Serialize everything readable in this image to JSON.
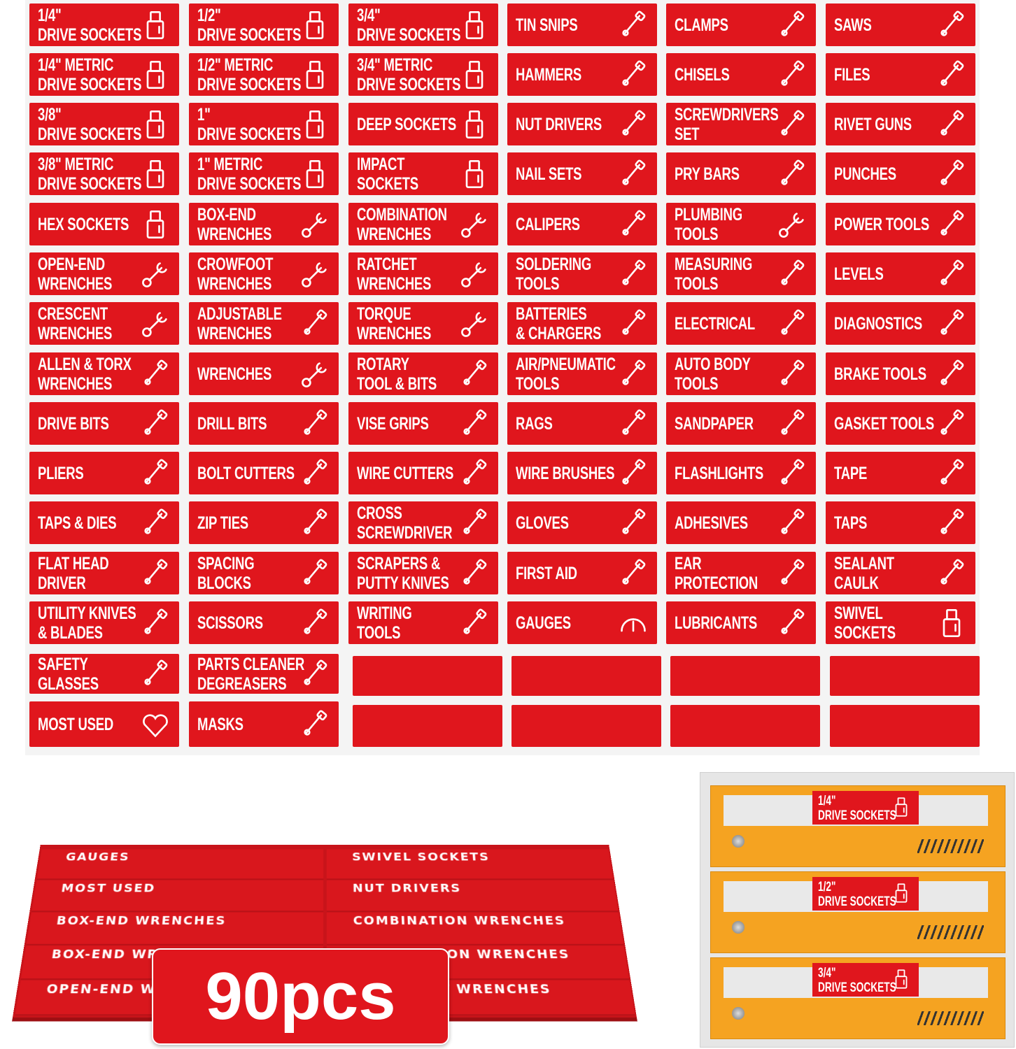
{
  "colors": {
    "label_red": "#e0161d",
    "drawer_orange": "#f5a321",
    "cabinet_gray": "#e6e6e6"
  },
  "sheet": {
    "labels": [
      [
        {
          "text": [
            "1/4\"",
            "DRIVE SOCKETS"
          ],
          "icon": "socket"
        },
        {
          "text": [
            "1/2\"",
            "DRIVE SOCKETS"
          ],
          "icon": "socket"
        },
        {
          "text": [
            "3/4\"",
            "DRIVE SOCKETS"
          ],
          "icon": "socket"
        },
        {
          "text": [
            "TIN SNIPS"
          ],
          "icon": "snips"
        },
        {
          "text": [
            "CLAMPS"
          ],
          "icon": "clamp"
        },
        {
          "text": [
            "SAWS"
          ],
          "icon": "saw"
        }
      ],
      [
        {
          "text": [
            "1/4\" METRIC",
            "DRIVE SOCKETS"
          ],
          "icon": "socket"
        },
        {
          "text": [
            "1/2\" METRIC",
            "DRIVE SOCKETS"
          ],
          "icon": "socket"
        },
        {
          "text": [
            "3/4\" METRIC",
            "DRIVE SOCKETS"
          ],
          "icon": "socket"
        },
        {
          "text": [
            "HAMMERS"
          ],
          "icon": "hammer"
        },
        {
          "text": [
            "CHISELS"
          ],
          "icon": "chisel"
        },
        {
          "text": [
            "FILES"
          ],
          "icon": "file"
        }
      ],
      [
        {
          "text": [
            "3/8\"",
            "DRIVE SOCKETS"
          ],
          "icon": "socket"
        },
        {
          "text": [
            "1\"",
            "DRIVE SOCKETS"
          ],
          "icon": "socket"
        },
        {
          "text": [
            "DEEP SOCKETS"
          ],
          "icon": "deep-socket"
        },
        {
          "text": [
            "NUT DRIVERS"
          ],
          "icon": "nut-driver"
        },
        {
          "text": [
            "SCREWDRIVERS",
            "SET"
          ],
          "icon": "screwdrivers"
        },
        {
          "text": [
            "RIVET GUNS"
          ],
          "icon": "rivet-gun"
        }
      ],
      [
        {
          "text": [
            "3/8\" METRIC",
            "DRIVE SOCKETS"
          ],
          "icon": "socket"
        },
        {
          "text": [
            "1\" METRIC",
            "DRIVE SOCKETS"
          ],
          "icon": "socket"
        },
        {
          "text": [
            "IMPACT",
            "SOCKETS"
          ],
          "icon": "socket"
        },
        {
          "text": [
            "NAIL SETS"
          ],
          "icon": "nail-set"
        },
        {
          "text": [
            "PRY BARS"
          ],
          "icon": "pry-bar"
        },
        {
          "text": [
            "PUNCHES"
          ],
          "icon": "punch"
        }
      ],
      [
        {
          "text": [
            "HEX SOCKETS"
          ],
          "icon": "hex-socket"
        },
        {
          "text": [
            "BOX-END",
            "WRENCHES"
          ],
          "icon": "wrench"
        },
        {
          "text": [
            "COMBINATION",
            "WRENCHES"
          ],
          "icon": "wrench"
        },
        {
          "text": [
            "CALIPERS"
          ],
          "icon": "caliper"
        },
        {
          "text": [
            "PLUMBING",
            "TOOLS"
          ],
          "icon": "pipe-wrench"
        },
        {
          "text": [
            "POWER TOOLS"
          ],
          "icon": "grinder"
        }
      ],
      [
        {
          "text": [
            "OPEN-END",
            "WRENCHES"
          ],
          "icon": "wrench"
        },
        {
          "text": [
            "CROWFOOT",
            "WRENCHES"
          ],
          "icon": "crowfoot"
        },
        {
          "text": [
            "RATCHET",
            "WRENCHES"
          ],
          "icon": "ratchet"
        },
        {
          "text": [
            "SOLDERING",
            "TOOLS"
          ],
          "icon": "soldering-iron"
        },
        {
          "text": [
            "MEASURING",
            "TOOLS"
          ],
          "icon": "tape-measure"
        },
        {
          "text": [
            "LEVELS"
          ],
          "icon": "level"
        }
      ],
      [
        {
          "text": [
            "CRESCENT",
            "WRENCHES"
          ],
          "icon": "adjustable-wrench"
        },
        {
          "text": [
            "ADJUSTABLE",
            "WRENCHES"
          ],
          "icon": "pliers"
        },
        {
          "text": [
            "TORQUE",
            "WRENCHES"
          ],
          "icon": "ratchet"
        },
        {
          "text": [
            "BATTERIES",
            "& CHARGERS"
          ],
          "icon": "battery"
        },
        {
          "text": [
            "ELECTRICAL"
          ],
          "icon": "multimeter"
        },
        {
          "text": [
            "DIAGNOSTICS"
          ],
          "icon": "diagnostic"
        }
      ],
      [
        {
          "text": [
            "ALLEN & TORX",
            "WRENCHES"
          ],
          "icon": "allen-keys"
        },
        {
          "text": [
            "WRENCHES"
          ],
          "icon": "wrenches"
        },
        {
          "text": [
            "ROTARY",
            "TOOL & BITS"
          ],
          "icon": "rotary-tool"
        },
        {
          "text": [
            "AIR/PNEUMATIC",
            "TOOLS"
          ],
          "icon": "air-gun"
        },
        {
          "text": [
            "AUTO BODY",
            "TOOLS"
          ],
          "icon": "car-door"
        },
        {
          "text": [
            "BRAKE TOOLS"
          ],
          "icon": "brake-disc"
        }
      ],
      [
        {
          "text": [
            "DRIVE BITS"
          ],
          "icon": "bits"
        },
        {
          "text": [
            "DRILL BITS"
          ],
          "icon": "drill-bits"
        },
        {
          "text": [
            "VISE GRIPS"
          ],
          "icon": "vise-grip"
        },
        {
          "text": [
            "RAGS"
          ],
          "icon": "rag"
        },
        {
          "text": [
            "SANDPAPER"
          ],
          "icon": "sandpaper"
        },
        {
          "text": [
            "GASKET TOOLS"
          ],
          "icon": "gasket"
        }
      ],
      [
        {
          "text": [
            "PLIERS"
          ],
          "icon": "pliers"
        },
        {
          "text": [
            "BOLT CUTTERS"
          ],
          "icon": "bolt-cutter"
        },
        {
          "text": [
            "WIRE CUTTERS"
          ],
          "icon": "wire-cutter"
        },
        {
          "text": [
            "WIRE BRUSHES"
          ],
          "icon": "brush"
        },
        {
          "text": [
            "FLASHLIGHTS"
          ],
          "icon": "flashlight"
        },
        {
          "text": [
            "TAPE"
          ],
          "icon": "tape"
        }
      ],
      [
        {
          "text": [
            "TAPS & DIES"
          ],
          "icon": "tap-die"
        },
        {
          "text": [
            "ZIP TIES"
          ],
          "icon": "zip-tie"
        },
        {
          "text": [
            "CROSS",
            "SCREWDRIVER"
          ],
          "icon": "screwdriver"
        },
        {
          "text": [
            "GLOVES"
          ],
          "icon": "gloves"
        },
        {
          "text": [
            "ADHESIVES"
          ],
          "icon": "glue"
        },
        {
          "text": [
            "TAPS"
          ],
          "icon": "taps"
        }
      ],
      [
        {
          "text": [
            "FLAT HEAD",
            "DRIVER"
          ],
          "icon": "screwdriver"
        },
        {
          "text": [
            "SPACING",
            "BLOCKS"
          ],
          "icon": "blocks"
        },
        {
          "text": [
            "SCRAPERS &",
            "PUTTY KNIVES"
          ],
          "icon": "scraper"
        },
        {
          "text": [
            "FIRST AID"
          ],
          "icon": "first-aid"
        },
        {
          "text": [
            "EAR",
            "PROTECTION"
          ],
          "icon": "headphones"
        },
        {
          "text": [
            "SEALANT",
            "CAULK"
          ],
          "icon": "caulk-gun"
        }
      ],
      [
        {
          "text": [
            "UTILITY KNIVES",
            "& BLADES"
          ],
          "icon": "utility-knife"
        },
        {
          "text": [
            "SCISSORS"
          ],
          "icon": "scissors"
        },
        {
          "text": [
            "WRITING",
            "TOOLS"
          ],
          "icon": "pencil"
        },
        {
          "text": [
            "GAUGES"
          ],
          "icon": "gauge"
        },
        {
          "text": [
            "LUBRICANTS"
          ],
          "icon": "oil-can"
        },
        {
          "text": [
            "SWIVEL",
            "SOCKETS"
          ],
          "icon": "swivel-socket"
        }
      ],
      [
        {
          "text": [
            "SAFETY",
            "GLASSES"
          ],
          "icon": "goggles"
        },
        {
          "text": [
            "PARTS CLEANER",
            "DEGREASERS"
          ],
          "icon": "spray"
        },
        null,
        null,
        null,
        null
      ],
      [
        {
          "text": [
            "MOST USED"
          ],
          "icon": "heart"
        },
        {
          "text": [
            "MASKS"
          ],
          "icon": "mask"
        },
        null,
        null,
        null,
        null
      ]
    ]
  },
  "stack": {
    "rows": [
      [
        "GAUGES",
        "SWIVEL SOCKETS"
      ],
      [
        "MOST USED",
        "NUT DRIVERS"
      ],
      [
        "BOX-END WRENCHES",
        "COMBINATION WRENCHES"
      ],
      [
        "BOX-END WRENCHES",
        "COMBINATION WRENCHES"
      ],
      [
        "OPEN-END WRENCHES",
        "CROWFOOT WRENCHES"
      ]
    ]
  },
  "badge": {
    "label": "90pcs"
  },
  "cabinet": {
    "drawers": [
      {
        "line1": "1/4\"",
        "line2": "DRIVE SOCKETS"
      },
      {
        "line1": "1/2\"",
        "line2": "DRIVE SOCKETS"
      },
      {
        "line1": "3/4\"",
        "line2": "DRIVE SOCKETS"
      }
    ]
  }
}
